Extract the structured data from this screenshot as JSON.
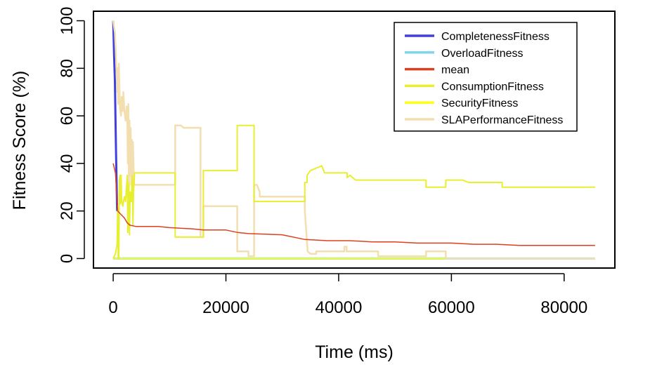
{
  "chart_data": {
    "type": "line",
    "title": "",
    "xlabel": "Time (ms)",
    "ylabel": "Fitness Score (%)",
    "xlim": [
      -3500,
      89000
    ],
    "ylim": [
      -4,
      104
    ],
    "xticks": [
      0,
      20000,
      40000,
      60000,
      80000
    ],
    "xtick_labels": [
      "0",
      "20000",
      "40000",
      "60000",
      "80000"
    ],
    "yticks": [
      0,
      20,
      40,
      60,
      80,
      100
    ],
    "ytick_labels": [
      "0",
      "20",
      "40",
      "60",
      "80",
      "100"
    ],
    "legend_position": "top-right",
    "grid": false,
    "series": [
      {
        "name": "CompletenessFitness",
        "color": "#4040e0",
        "width": 3,
        "points": [
          [
            0,
            100
          ],
          [
            150,
            86
          ],
          [
            300,
            75
          ],
          [
            400,
            60
          ],
          [
            500,
            45
          ],
          [
            600,
            32
          ],
          [
            700,
            20
          ]
        ]
      },
      {
        "name": "OverloadFitness",
        "color": "#7fd4ee",
        "width": 3,
        "points": [
          [
            0,
            0
          ],
          [
            85500,
            0
          ]
        ]
      },
      {
        "name": "mean",
        "color": "#dd4020",
        "width": 1.5,
        "points": [
          [
            0,
            40
          ],
          [
            400,
            36
          ],
          [
            800,
            20
          ],
          [
            1200,
            19
          ],
          [
            1600,
            18
          ],
          [
            2000,
            17
          ],
          [
            2500,
            15
          ],
          [
            3000,
            14
          ],
          [
            4000,
            13.5
          ],
          [
            8000,
            13.5
          ],
          [
            10000,
            13
          ],
          [
            14000,
            12.5
          ],
          [
            16000,
            12
          ],
          [
            20000,
            12
          ],
          [
            22000,
            11
          ],
          [
            24000,
            10.5
          ],
          [
            30000,
            10
          ],
          [
            34000,
            8
          ],
          [
            38000,
            7.5
          ],
          [
            42000,
            7.5
          ],
          [
            46000,
            7
          ],
          [
            50000,
            7
          ],
          [
            54000,
            6.5
          ],
          [
            60000,
            6.5
          ],
          [
            64000,
            6
          ],
          [
            68000,
            6
          ],
          [
            72000,
            5.5
          ],
          [
            85500,
            5.5
          ]
        ]
      },
      {
        "name": "ConsumptionFitness",
        "color": "#e8ee30",
        "width": 2,
        "points": [
          [
            0,
            0
          ],
          [
            400,
            2
          ],
          [
            700,
            6
          ],
          [
            800,
            22
          ],
          [
            900,
            0
          ],
          [
            1000,
            0
          ],
          [
            1100,
            33
          ],
          [
            1200,
            35
          ],
          [
            1300,
            23
          ],
          [
            1400,
            35
          ],
          [
            1500,
            25
          ],
          [
            1700,
            22
          ],
          [
            2000,
            26
          ],
          [
            2200,
            24
          ],
          [
            2500,
            35
          ],
          [
            2600,
            11
          ],
          [
            2700,
            20
          ],
          [
            2800,
            32
          ],
          [
            2900,
            10
          ],
          [
            3000,
            28
          ],
          [
            3200,
            24
          ],
          [
            3400,
            35
          ],
          [
            3500,
            14
          ],
          [
            3600,
            28
          ],
          [
            3800,
            36
          ],
          [
            11000,
            36
          ],
          [
            11000,
            9
          ],
          [
            16000,
            9
          ],
          [
            16000,
            37
          ],
          [
            22000,
            37
          ],
          [
            22000,
            56
          ],
          [
            25000,
            56
          ],
          [
            25000,
            24
          ],
          [
            34000,
            24
          ],
          [
            34000,
            32
          ],
          [
            34400,
            32
          ],
          [
            34400,
            35
          ],
          [
            35000,
            37
          ],
          [
            36000,
            38
          ],
          [
            37000,
            39
          ],
          [
            37500,
            36
          ],
          [
            41500,
            36
          ],
          [
            41500,
            34
          ],
          [
            42000,
            35
          ],
          [
            43000,
            33
          ],
          [
            55500,
            33
          ],
          [
            55500,
            30
          ],
          [
            59000,
            30
          ],
          [
            59000,
            33
          ],
          [
            62000,
            33
          ],
          [
            63000,
            32
          ],
          [
            69000,
            32
          ],
          [
            69000,
            30
          ],
          [
            85500,
            30
          ]
        ]
      },
      {
        "name": "SecurityFitness",
        "color": "#ffff1a",
        "width": 2,
        "points": [
          [
            0,
            0
          ],
          [
            85500,
            0
          ]
        ]
      },
      {
        "name": "SLAPerformanceFitness",
        "color": "#f3deb0",
        "width": 2.5,
        "points": [
          [
            0,
            100
          ],
          [
            300,
            95
          ],
          [
            500,
            85
          ],
          [
            700,
            70
          ],
          [
            800,
            80
          ],
          [
            900,
            65
          ],
          [
            1000,
            82
          ],
          [
            1200,
            63
          ],
          [
            1400,
            60
          ],
          [
            1500,
            68
          ],
          [
            1600,
            65
          ],
          [
            1700,
            62
          ],
          [
            1800,
            70
          ],
          [
            2000,
            62
          ],
          [
            2200,
            58
          ],
          [
            2400,
            64
          ],
          [
            2500,
            60
          ],
          [
            2600,
            40
          ],
          [
            2700,
            65
          ],
          [
            2800,
            30
          ],
          [
            2900,
            58
          ],
          [
            3000,
            35
          ],
          [
            3100,
            55
          ],
          [
            3200,
            31
          ],
          [
            3300,
            50
          ],
          [
            3400,
            30
          ],
          [
            3500,
            49
          ],
          [
            3700,
            31
          ],
          [
            11000,
            31
          ],
          [
            11000,
            56
          ],
          [
            12000,
            56
          ],
          [
            12500,
            55
          ],
          [
            15500,
            55
          ],
          [
            15500,
            9
          ],
          [
            16000,
            9
          ],
          [
            16000,
            22
          ],
          [
            22000,
            22
          ],
          [
            22000,
            3
          ],
          [
            24000,
            3
          ],
          [
            24000,
            1
          ],
          [
            25000,
            1
          ],
          [
            25000,
            31
          ],
          [
            25500,
            31
          ],
          [
            26000,
            28
          ],
          [
            26000,
            26
          ],
          [
            34000,
            26
          ],
          [
            34000,
            20
          ],
          [
            34500,
            3
          ],
          [
            35000,
            2
          ],
          [
            36000,
            2
          ],
          [
            36000,
            3
          ],
          [
            41000,
            3
          ],
          [
            41000,
            5
          ],
          [
            41400,
            5
          ],
          [
            41400,
            3
          ],
          [
            47000,
            3
          ],
          [
            47000,
            1
          ],
          [
            55500,
            1
          ],
          [
            55500,
            3
          ],
          [
            59000,
            3
          ],
          [
            59000,
            0
          ],
          [
            85500,
            0
          ]
        ]
      }
    ]
  }
}
